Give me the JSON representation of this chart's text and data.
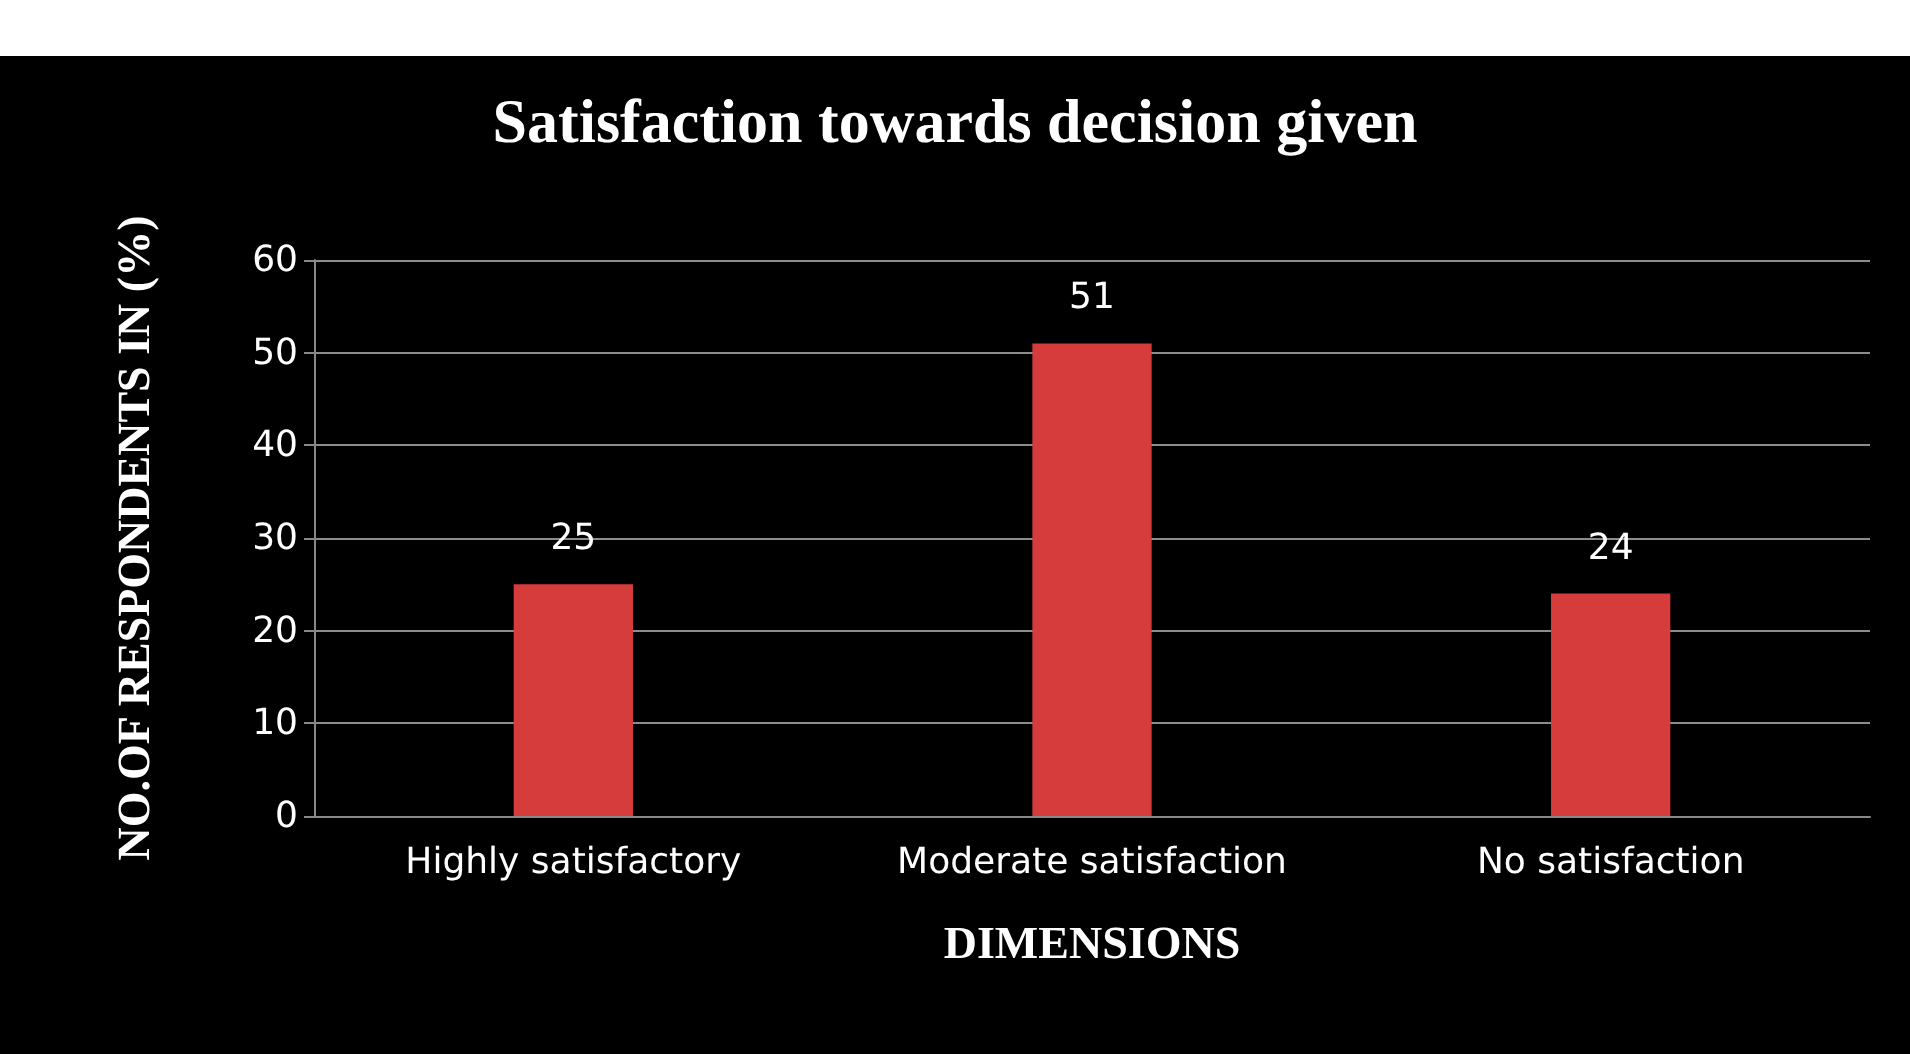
{
  "chart_data": {
    "type": "bar",
    "title": "Satisfaction towards decision given",
    "xlabel": "DIMENSIONS",
    "ylabel": "NO.OF RESPONDENTS IN (%)",
    "categories": [
      "Highly satisfactory",
      "Moderate satisfaction",
      "No satisfaction"
    ],
    "values": [
      25,
      51,
      24
    ],
    "color": "#d63c3c",
    "data_labels": true,
    "ylim": [
      0,
      60
    ],
    "yticks": [
      0,
      10,
      20,
      30,
      40,
      50,
      60
    ],
    "grid": "y"
  }
}
